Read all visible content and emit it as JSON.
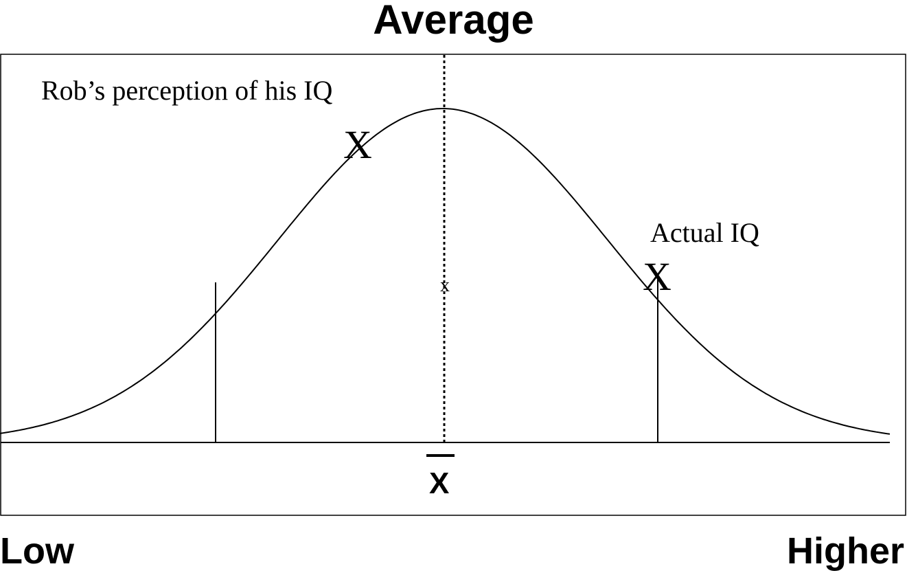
{
  "header": {
    "title": "Average"
  },
  "diagram": {
    "perception_label": "Rob’s perception of his IQ",
    "perception_marker": "X",
    "actual_label": "Actual IQ",
    "actual_marker": "X",
    "center_marker": "x",
    "mean_symbol": "X"
  },
  "axis": {
    "low_label": "Low",
    "high_label": "Higher"
  }
}
